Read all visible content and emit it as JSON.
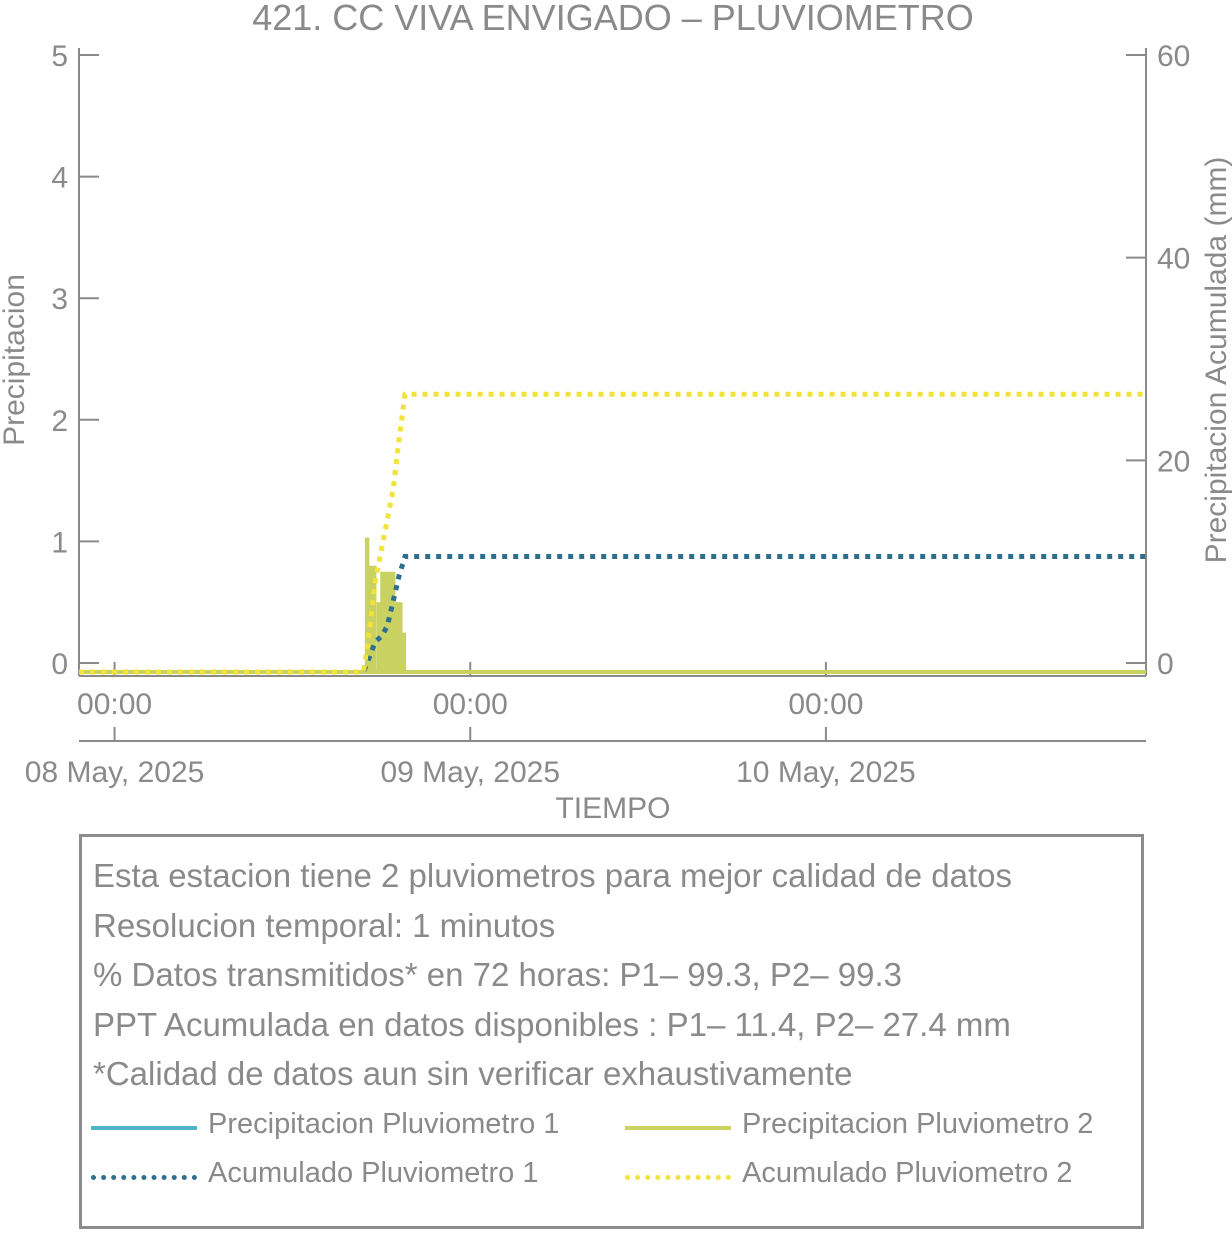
{
  "colors": {
    "p1": "#4db5c8",
    "p2": "#c9d260",
    "acc1": "#2e6f8e",
    "acc2": "#f2e33a",
    "axis": "#8a8a8a"
  },
  "chart_data": {
    "type": "bar",
    "title": "421. CC VIVA ENVIGADO – PLUVIOMETRO",
    "xlabel": "TIEMPO",
    "ylabel": "Precipitacion",
    "y2label": "Precipitacion Acumulada (mm)",
    "ylim": [
      0,
      5
    ],
    "y2lim": [
      0,
      60
    ],
    "yticks": [
      "0",
      "1",
      "2",
      "3",
      "4",
      "5"
    ],
    "y2ticks": [
      "0",
      "20",
      "40",
      "60"
    ],
    "xlim_hours": [
      -3,
      87
    ],
    "xticks": [
      {
        "hour": 0,
        "time": "00:00",
        "date": "08 May, 2025"
      },
      {
        "hour": 30,
        "time": "00:00",
        "date": "09 May, 2025"
      },
      {
        "hour": 60,
        "time": "00:00",
        "date": "10 May, 2025"
      }
    ],
    "grid": false,
    "series": [
      {
        "name": "Precipitacion Pluviometro 1",
        "kind": "bar",
        "axis": "left",
        "values": [
          [
            21.9,
            0.2
          ],
          [
            22.4,
            0.3
          ],
          [
            23.1,
            0.2
          ]
        ]
      },
      {
        "name": "Precipitacion Pluviometro 2",
        "kind": "bar",
        "axis": "left",
        "values": [
          [
            21.3,
            1.03
          ],
          [
            21.6,
            0.8
          ],
          [
            21.9,
            0.8
          ],
          [
            22.3,
            0.5
          ],
          [
            22.6,
            0.75
          ],
          [
            22.9,
            0.75
          ],
          [
            23.2,
            0.75
          ],
          [
            23.5,
            0.75
          ],
          [
            23.8,
            0.5
          ],
          [
            24.1,
            0.5
          ],
          [
            24.4,
            0.25
          ]
        ]
      },
      {
        "name": "Acumulado Pluviometro 1",
        "kind": "dotted-line",
        "axis": "right",
        "points": [
          [
            -3,
            0
          ],
          [
            21.0,
            0
          ],
          [
            21.5,
            1.5
          ],
          [
            22.0,
            3
          ],
          [
            22.5,
            3.5
          ],
          [
            23.0,
            4.5
          ],
          [
            23.5,
            7
          ],
          [
            24.0,
            9.5
          ],
          [
            24.5,
            11.4
          ],
          [
            87,
            11.4
          ]
        ]
      },
      {
        "name": "Acumulado Pluviometro 2",
        "kind": "dotted-line",
        "axis": "right",
        "points": [
          [
            -3,
            0
          ],
          [
            21.0,
            0
          ],
          [
            21.3,
            2.4
          ],
          [
            21.6,
            5
          ],
          [
            22.0,
            9
          ],
          [
            22.5,
            12
          ],
          [
            23.0,
            15
          ],
          [
            23.5,
            18
          ],
          [
            24.0,
            23
          ],
          [
            24.5,
            27.4
          ],
          [
            87,
            27.4
          ]
        ]
      }
    ]
  },
  "info": {
    "line1": "Esta estacion tiene 2 pluviometros para mejor calidad de datos",
    "line2": "Resolucion temporal: 1 minutos",
    "line3": "% Datos transmitidos* en 72 horas: P1– 99.3, P2– 99.3",
    "line4": "PPT Acumulada en datos disponibles : P1– 11.4, P2– 27.4 mm",
    "line5": "*Calidad de datos aun sin verificar exhaustivamente"
  },
  "legend": {
    "p1": "Precipitacion Pluviometro 1",
    "p2": "Precipitacion Pluviometro 2",
    "acc1": "Acumulado Pluviometro 1",
    "acc2": "Acumulado Pluviometro 2"
  }
}
